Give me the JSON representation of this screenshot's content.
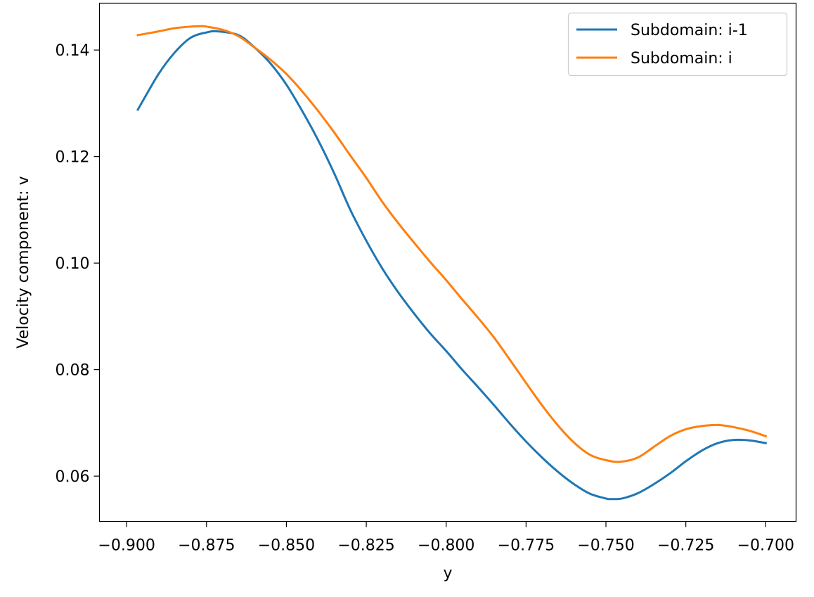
{
  "chart_data": {
    "type": "line",
    "title": "",
    "xlabel": "y",
    "ylabel": "Velocity component: v",
    "xlim": [
      -0.9085,
      -0.6905
    ],
    "ylim": [
      0.0515,
      0.1488
    ],
    "xticks": [
      -0.9,
      -0.875,
      -0.85,
      -0.825,
      -0.8,
      -0.775,
      -0.75,
      -0.725,
      -0.7
    ],
    "xtick_labels": [
      "−0.900",
      "−0.875",
      "−0.850",
      "−0.825",
      "−0.800",
      "−0.775",
      "−0.750",
      "−0.725",
      "−0.700"
    ],
    "yticks": [
      0.06,
      0.08,
      0.1,
      0.12,
      0.14
    ],
    "ytick_labels": [
      "0.06",
      "0.08",
      "0.10",
      "0.12",
      "0.14"
    ],
    "grid": false,
    "legend_position": "top-right",
    "series": [
      {
        "name": "Subdomain: i-1",
        "color": "#1f77b4",
        "x": [
          -0.8965,
          -0.89,
          -0.885,
          -0.88,
          -0.875,
          -0.8715,
          -0.865,
          -0.86,
          -0.855,
          -0.85,
          -0.845,
          -0.84,
          -0.835,
          -0.83,
          -0.825,
          -0.82,
          -0.815,
          -0.81,
          -0.805,
          -0.8,
          -0.795,
          -0.79,
          -0.785,
          -0.78,
          -0.775,
          -0.77,
          -0.765,
          -0.76,
          -0.755,
          -0.75,
          -0.7485,
          -0.745,
          -0.74,
          -0.735,
          -0.73,
          -0.725,
          -0.72,
          -0.715,
          -0.71,
          -0.705,
          -0.7
        ],
        "y": [
          0.1288,
          0.1355,
          0.1395,
          0.1423,
          0.1433,
          0.1435,
          0.1428,
          0.1405,
          0.1375,
          0.1335,
          0.1285,
          0.123,
          0.1168,
          0.11,
          0.1042,
          0.099,
          0.0945,
          0.0905,
          0.0868,
          0.0835,
          0.08,
          0.0767,
          0.0733,
          0.0698,
          0.0665,
          0.0635,
          0.0608,
          0.0585,
          0.0567,
          0.0558,
          0.0557,
          0.0558,
          0.0568,
          0.0585,
          0.0605,
          0.0628,
          0.0648,
          0.0662,
          0.0668,
          0.0667,
          0.0662
        ]
      },
      {
        "name": "Subdomain: i",
        "color": "#ff7f0e",
        "x": [
          -0.8965,
          -0.89,
          -0.885,
          -0.88,
          -0.8765,
          -0.875,
          -0.87,
          -0.865,
          -0.86,
          -0.855,
          -0.85,
          -0.845,
          -0.84,
          -0.835,
          -0.83,
          -0.825,
          -0.82,
          -0.815,
          -0.81,
          -0.805,
          -0.8,
          -0.795,
          -0.79,
          -0.785,
          -0.78,
          -0.775,
          -0.77,
          -0.765,
          -0.76,
          -0.755,
          -0.75,
          -0.7455,
          -0.74,
          -0.735,
          -0.73,
          -0.725,
          -0.72,
          -0.715,
          -0.71,
          -0.705,
          -0.7
        ],
        "y": [
          0.1428,
          0.1435,
          0.1441,
          0.1444,
          0.1445,
          0.1444,
          0.1438,
          0.1426,
          0.1405,
          0.1382,
          0.1355,
          0.1322,
          0.1285,
          0.1245,
          0.1202,
          0.116,
          0.1115,
          0.1075,
          0.1038,
          0.1002,
          0.0968,
          0.0932,
          0.0897,
          0.086,
          0.0818,
          0.0775,
          0.0733,
          0.0695,
          0.0663,
          0.064,
          0.063,
          0.0627,
          0.0635,
          0.0655,
          0.0675,
          0.0688,
          0.0694,
          0.0696,
          0.0692,
          0.0685,
          0.0675
        ]
      }
    ]
  }
}
